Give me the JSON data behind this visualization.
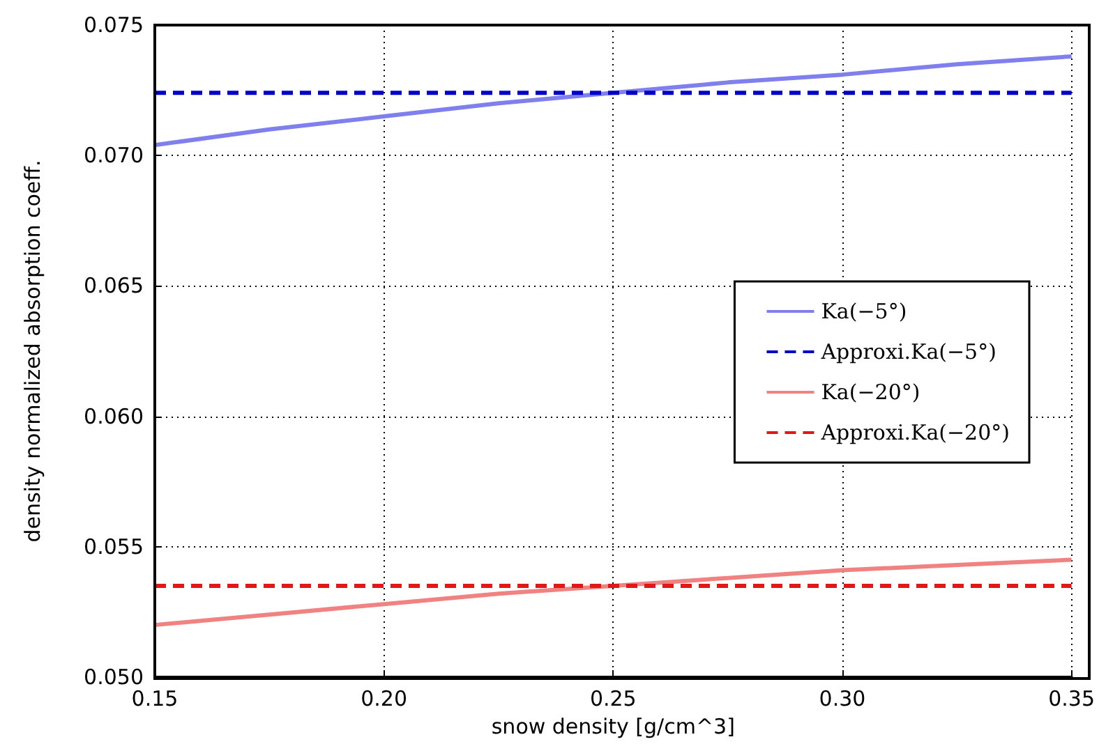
{
  "chart_data": {
    "type": "line",
    "xlabel": "snow density [g/cm^3]",
    "ylabel": "density normalized absorption coeff.",
    "x": [
      0.15,
      0.175,
      0.2,
      0.225,
      0.25,
      0.275,
      0.3,
      0.325,
      0.35
    ],
    "series": [
      {
        "name": "Ka(−5°)",
        "color": "#7f7fee",
        "line_style": "solid",
        "values": [
          0.0704,
          0.071,
          0.0715,
          0.072,
          0.0724,
          0.0728,
          0.0731,
          0.0735,
          0.0738
        ]
      },
      {
        "name": "Approxi.Ka(−5°)",
        "color": "#0000c8",
        "line_style": "dashed",
        "values": [
          0.0724,
          0.0724,
          0.0724,
          0.0724,
          0.0724,
          0.0724,
          0.0724,
          0.0724,
          0.0724
        ]
      },
      {
        "name": "Ka(−20°)",
        "color": "#f08282",
        "line_style": "solid",
        "values": [
          0.052,
          0.0524,
          0.0528,
          0.0532,
          0.0535,
          0.0538,
          0.0541,
          0.0543,
          0.0545
        ]
      },
      {
        "name": "Approxi.Ka(−20°)",
        "color": "#e01818",
        "line_style": "dashed",
        "values": [
          0.0535,
          0.0535,
          0.0535,
          0.0535,
          0.0535,
          0.0535,
          0.0535,
          0.0535,
          0.0535
        ]
      }
    ],
    "xlim": [
      0.15,
      0.35
    ],
    "xticks": [
      0.15,
      {
        "value": 0.2,
        "label": "0.20"
      },
      0.25,
      {
        "value": 0.3,
        "label": "0.30"
      },
      0.35
    ],
    "ylim": [
      0.05,
      0.075
    ],
    "yticks": [
      {
        "value": 0.05,
        "label": "0.050"
      },
      0.055,
      {
        "value": 0.06,
        "label": "0.060"
      },
      0.065,
      {
        "value": 0.07,
        "label": "0.070"
      },
      0.075
    ],
    "grid": true,
    "legend": "right",
    "marker": "none"
  }
}
